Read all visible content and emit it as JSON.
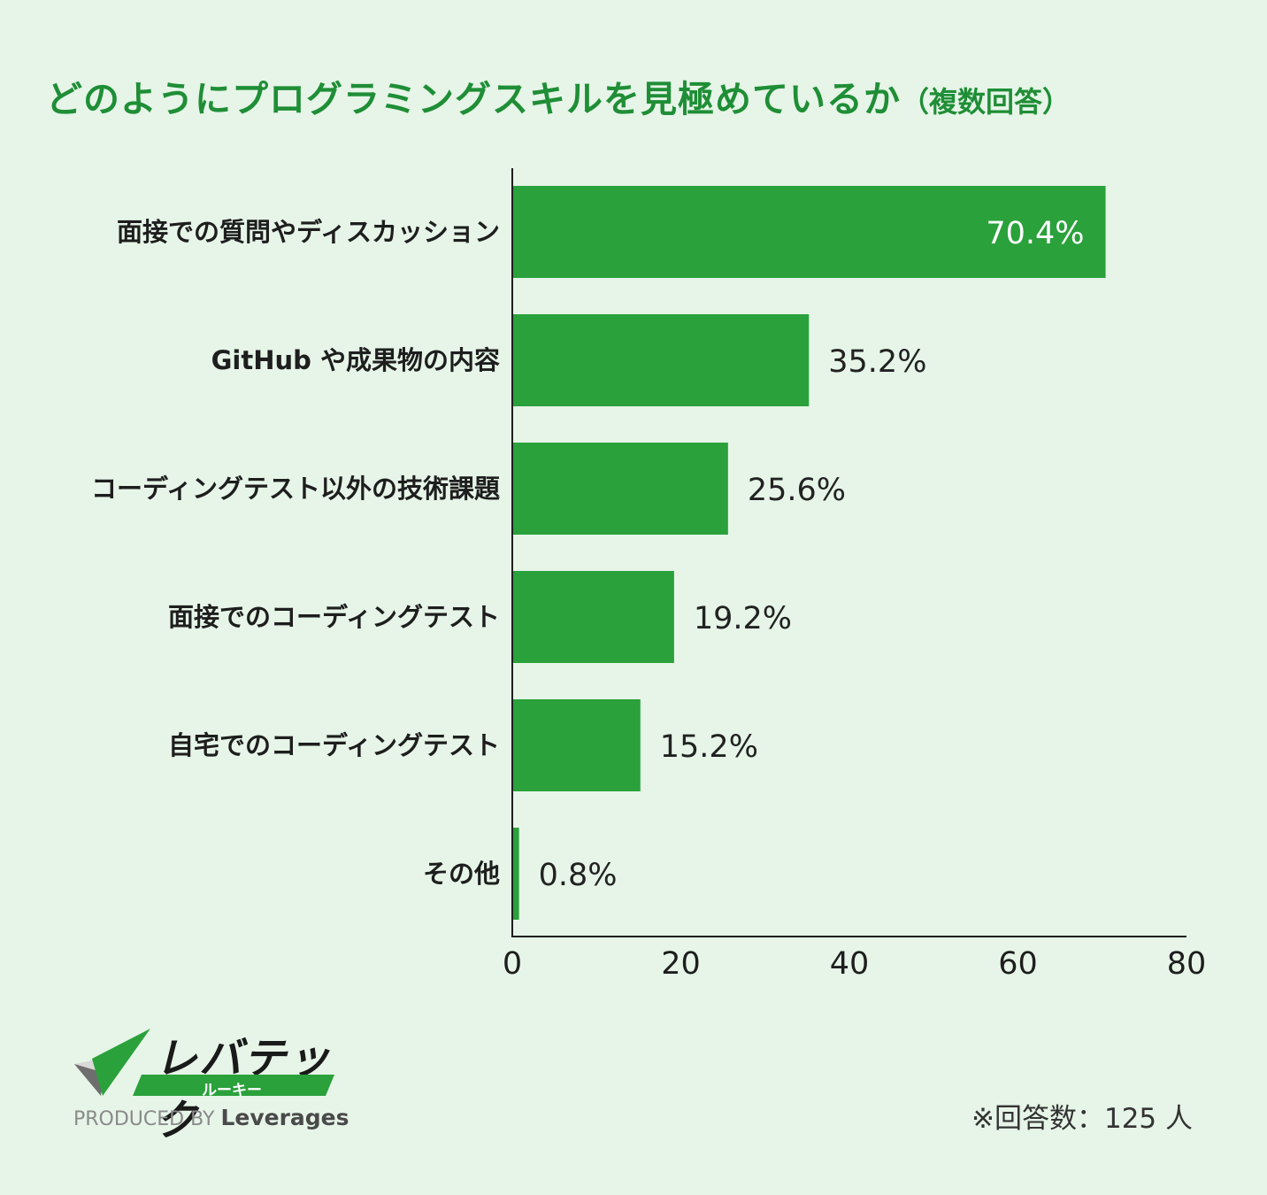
{
  "title": "どのようにプログラミングスキルを見極めているか",
  "title_suffix": "（複数回答）",
  "note": "※回答数：125 人",
  "logo": {
    "brand_text": "レバテック",
    "brand_sub": "ルーキー",
    "produced_by": "PRODUCED BY",
    "company": "Leverages",
    "icon": "checkmark-icon"
  },
  "colors": {
    "bar": "#2aa13b",
    "title": "#1f8e36",
    "background": "#e6f5e8"
  },
  "chart_data": {
    "type": "bar",
    "orientation": "horizontal",
    "title": "どのようにプログラミングスキルを見極めているか（複数回答）",
    "categories": [
      "面接での質問やディスカッション",
      "GitHub や成果物の内容",
      "コーディングテスト以外の技術課題",
      "面接でのコーディングテスト",
      "自宅でのコーディングテスト",
      "その他"
    ],
    "values": [
      70.4,
      35.2,
      25.6,
      19.2,
      15.2,
      0.8
    ],
    "value_labels": [
      "70.4%",
      "35.2%",
      "25.6%",
      "19.2%",
      "15.2%",
      "0.8%"
    ],
    "xlim": [
      0,
      80
    ],
    "xticks": [
      0,
      20,
      40,
      60,
      80
    ],
    "xtick_labels": [
      "0",
      "20",
      "40",
      "60",
      "80"
    ],
    "grid": false,
    "legend": "none"
  }
}
